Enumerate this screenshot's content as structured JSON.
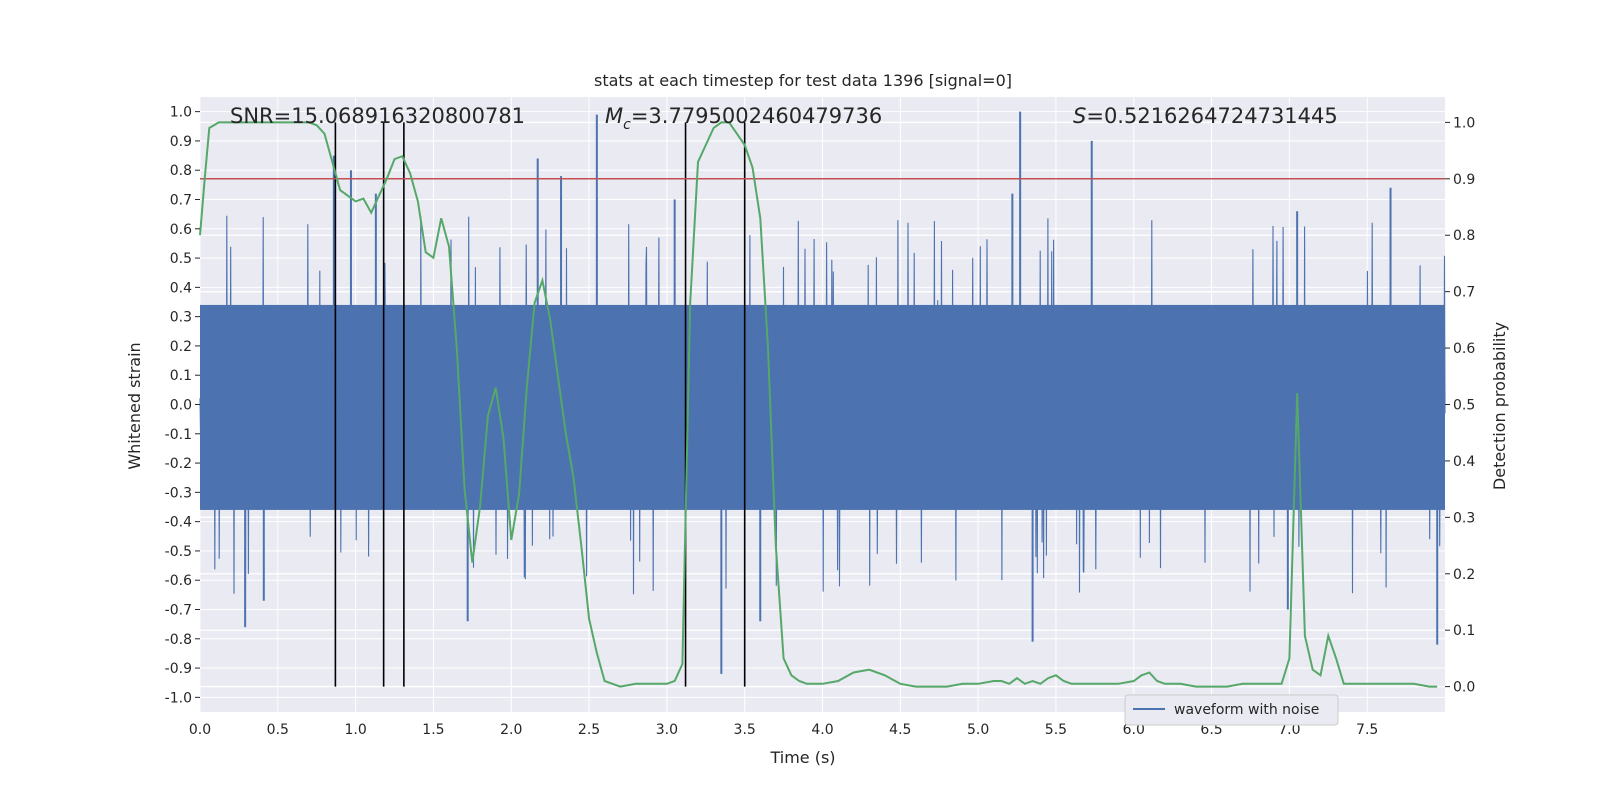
{
  "chart_data": {
    "type": "line",
    "title": "stats at each timestep for test data 1396 [signal=0]",
    "xlabel": "Time (s)",
    "ylabel_left": "Whitened strain",
    "ylabel_right": "Detection probability",
    "xlim": [
      0,
      8
    ],
    "ylim_left": [
      -1.05,
      1.05
    ],
    "ylim_right": [
      -0.045,
      1.045
    ],
    "x_ticks": [
      "0.0",
      "0.5",
      "1.0",
      "1.5",
      "2.0",
      "2.5",
      "3.0",
      "3.5",
      "4.0",
      "4.5",
      "5.0",
      "5.5",
      "6.0",
      "6.5",
      "7.0",
      "7.5"
    ],
    "y_ticks_left": [
      "-1.0",
      "-0.9",
      "-0.8",
      "-0.7",
      "-0.6",
      "-0.5",
      "-0.4",
      "-0.3",
      "-0.2",
      "-0.1",
      "0.0",
      "0.1",
      "0.2",
      "0.3",
      "0.4",
      "0.5",
      "0.6",
      "0.7",
      "0.8",
      "0.9",
      "1.0"
    ],
    "y_ticks_right": [
      "0.0",
      "0.1",
      "0.2",
      "0.3",
      "0.4",
      "0.5",
      "0.6",
      "0.7",
      "0.8",
      "0.9",
      "1.0"
    ],
    "annotations": {
      "snr": "SNR=15.068916320800781",
      "mc_symbol": "M",
      "mc_sub": "c",
      "mc_value": "=3.7795002460479736",
      "s_symbol": "S",
      "s_value": "=0.5216264724731445"
    },
    "legend": [
      {
        "label": "waveform with noise",
        "color": "#4c72b0"
      }
    ],
    "legend_location": "lower right",
    "grid": true,
    "threshold": {
      "value": 0.9,
      "axis": "right",
      "color": "#c44e52"
    },
    "vertical_markers_x": [
      0.87,
      1.18,
      1.31,
      3.12,
      3.5
    ],
    "waveform": {
      "name": "waveform with noise",
      "color": "#4c72b0",
      "band_noise_amplitude": 0.42,
      "spikes": [
        {
          "x": 0.86,
          "y": 0.85
        },
        {
          "x": 1.13,
          "y": 0.72
        },
        {
          "x": 2.17,
          "y": 0.84
        },
        {
          "x": 2.32,
          "y": 0.78
        },
        {
          "x": 2.55,
          "y": 0.99
        },
        {
          "x": 3.05,
          "y": 0.7
        },
        {
          "x": 5.27,
          "y": 1.0
        },
        {
          "x": 5.73,
          "y": 0.9
        },
        {
          "x": 5.22,
          "y": 0.72
        },
        {
          "x": 7.05,
          "y": 0.66
        },
        {
          "x": 7.65,
          "y": 0.74
        },
        {
          "x": 0.97,
          "y": 0.8
        },
        {
          "x": 0.29,
          "y": -0.76
        },
        {
          "x": 0.41,
          "y": -0.67
        },
        {
          "x": 1.72,
          "y": -0.74
        },
        {
          "x": 3.35,
          "y": -0.92
        },
        {
          "x": 5.35,
          "y": -0.81
        },
        {
          "x": 7.95,
          "y": -0.82
        },
        {
          "x": 6.99,
          "y": -0.7
        },
        {
          "x": 3.6,
          "y": -0.74
        }
      ]
    },
    "probability": {
      "name": "detection probability",
      "color": "#55a868",
      "x": [
        0.0,
        0.03,
        0.06,
        0.12,
        0.2,
        0.3,
        0.4,
        0.5,
        0.6,
        0.7,
        0.75,
        0.8,
        0.85,
        0.9,
        0.95,
        1.0,
        1.05,
        1.1,
        1.15,
        1.2,
        1.25,
        1.3,
        1.35,
        1.4,
        1.45,
        1.5,
        1.55,
        1.6,
        1.65,
        1.7,
        1.75,
        1.8,
        1.85,
        1.9,
        1.95,
        2.0,
        2.05,
        2.1,
        2.15,
        2.2,
        2.25,
        2.3,
        2.35,
        2.4,
        2.45,
        2.5,
        2.55,
        2.6,
        2.65,
        2.7,
        2.8,
        2.9,
        3.0,
        3.05,
        3.1,
        3.15,
        3.2,
        3.25,
        3.3,
        3.35,
        3.4,
        3.45,
        3.5,
        3.55,
        3.6,
        3.65,
        3.7,
        3.75,
        3.8,
        3.85,
        3.9,
        3.95,
        4.0,
        4.1,
        4.2,
        4.3,
        4.4,
        4.5,
        4.6,
        4.7,
        4.8,
        4.9,
        5.0,
        5.1,
        5.15,
        5.2,
        5.25,
        5.3,
        5.35,
        5.4,
        5.45,
        5.5,
        5.55,
        5.6,
        5.7,
        5.8,
        5.9,
        6.0,
        6.05,
        6.1,
        6.15,
        6.2,
        6.3,
        6.4,
        6.5,
        6.6,
        6.7,
        6.8,
        6.9,
        6.95,
        7.0,
        7.05,
        7.1,
        7.15,
        7.2,
        7.25,
        7.3,
        7.35,
        7.4,
        7.5,
        7.6,
        7.7,
        7.8,
        7.9,
        7.95
      ],
      "y": [
        0.8,
        0.9,
        0.99,
        1.0,
        1.0,
        1.0,
        1.0,
        1.0,
        1.0,
        1.0,
        0.995,
        0.98,
        0.93,
        0.88,
        0.87,
        0.86,
        0.865,
        0.84,
        0.87,
        0.9,
        0.935,
        0.94,
        0.91,
        0.86,
        0.77,
        0.76,
        0.83,
        0.78,
        0.6,
        0.35,
        0.22,
        0.32,
        0.48,
        0.53,
        0.44,
        0.26,
        0.34,
        0.53,
        0.68,
        0.72,
        0.65,
        0.55,
        0.45,
        0.37,
        0.25,
        0.12,
        0.06,
        0.01,
        0.005,
        0.0,
        0.005,
        0.005,
        0.005,
        0.01,
        0.04,
        0.68,
        0.93,
        0.96,
        0.99,
        1.0,
        1.0,
        0.98,
        0.96,
        0.92,
        0.83,
        0.6,
        0.25,
        0.05,
        0.02,
        0.01,
        0.005,
        0.005,
        0.005,
        0.01,
        0.025,
        0.03,
        0.02,
        0.005,
        0.0,
        0.0,
        0.0,
        0.005,
        0.005,
        0.01,
        0.01,
        0.005,
        0.015,
        0.005,
        0.01,
        0.005,
        0.015,
        0.02,
        0.01,
        0.005,
        0.005,
        0.005,
        0.005,
        0.01,
        0.02,
        0.025,
        0.01,
        0.005,
        0.005,
        0.0,
        0.0,
        0.0,
        0.005,
        0.005,
        0.005,
        0.005,
        0.05,
        0.52,
        0.09,
        0.03,
        0.02,
        0.09,
        0.05,
        0.005,
        0.005,
        0.005,
        0.005,
        0.005,
        0.005,
        0.0,
        0.0
      ]
    }
  }
}
